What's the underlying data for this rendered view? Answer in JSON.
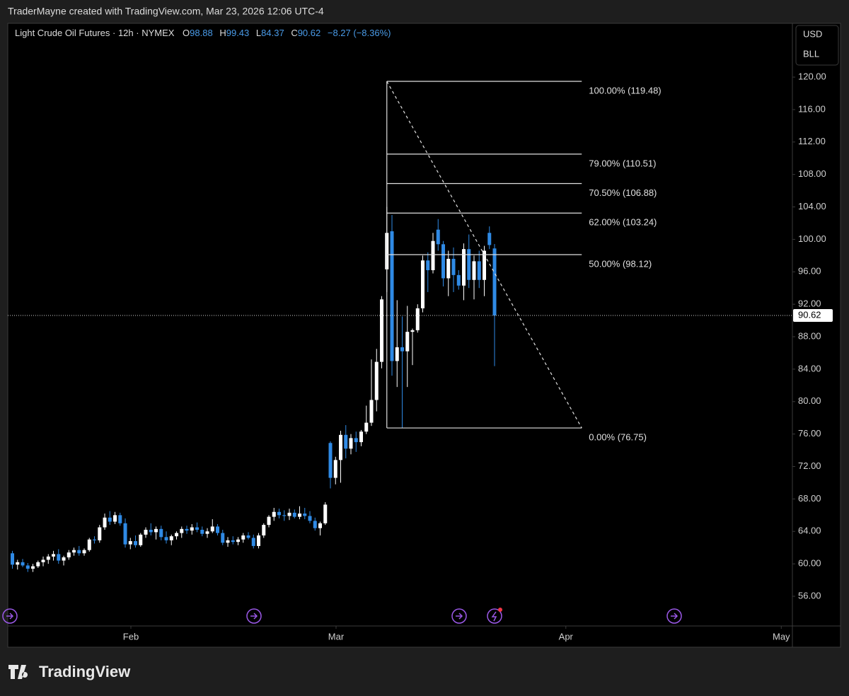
{
  "credit": "TraderMayne created with TradingView.com, Mar 23, 2026 12:06 UTC-4",
  "brand": "TradingView",
  "chart_data": {
    "type": "candlestick",
    "title": "Light Crude Oil Futures · 12h · NYMEX",
    "ohlc_labels": [
      "O",
      "H",
      "L",
      "C"
    ],
    "change": "−8.27 (−8.36%)",
    "currency": "USD",
    "unit": "BLL",
    "up_color": "#ffffff",
    "down_color": "#2f8ae5",
    "ylim": [
      52.34,
      126.63
    ],
    "yticks": [
      {
        "value": 120,
        "label": "120.00"
      },
      {
        "value": 116,
        "label": "116.00"
      },
      {
        "value": 112,
        "label": "112.00"
      },
      {
        "value": 108,
        "label": "108.00"
      },
      {
        "value": 104,
        "label": "104.00"
      },
      {
        "value": 100,
        "label": "100.00"
      },
      {
        "value": 96,
        "label": "96.00"
      },
      {
        "value": 92,
        "label": "92.00"
      },
      {
        "value": 88,
        "label": "88.00"
      },
      {
        "value": 84,
        "label": "84.00"
      },
      {
        "value": 80,
        "label": "80.00"
      },
      {
        "value": 76,
        "label": "76.00"
      },
      {
        "value": 72,
        "label": "72.00"
      },
      {
        "value": 68,
        "label": "68.00"
      },
      {
        "value": 64,
        "label": "64.00"
      },
      {
        "value": 60,
        "label": "60.00"
      },
      {
        "value": 56,
        "label": "56.00"
      }
    ],
    "xlim": [
      -0.9,
      152.07
    ],
    "xticks": [
      {
        "value": 23.1,
        "label": "Feb"
      },
      {
        "value": 63.1,
        "label": "Mar"
      },
      {
        "value": 107.9,
        "label": "Apr"
      },
      {
        "value": 149.9,
        "label": "May"
      }
    ],
    "ohlc": [
      [
        61.3,
        61.6,
        59.4,
        59.9
      ],
      [
        59.9,
        60.5,
        59.3,
        60.2
      ],
      [
        60.2,
        60.6,
        59.6,
        59.8
      ],
      [
        59.8,
        60.1,
        59.0,
        59.4
      ],
      [
        59.4,
        60.0,
        59.0,
        59.7
      ],
      [
        59.7,
        60.4,
        59.5,
        60.2
      ],
      [
        60.2,
        60.9,
        59.7,
        60.5
      ],
      [
        60.5,
        61.2,
        60.0,
        60.9
      ],
      [
        60.9,
        61.6,
        60.4,
        61.2
      ],
      [
        61.2,
        61.8,
        60.0,
        60.4
      ],
      [
        60.4,
        61.0,
        59.8,
        60.8
      ],
      [
        60.8,
        61.7,
        60.5,
        61.4
      ],
      [
        61.4,
        62.0,
        61.0,
        61.7
      ],
      [
        61.7,
        62.2,
        61.0,
        61.3
      ],
      [
        61.3,
        61.9,
        61.0,
        61.7
      ],
      [
        61.7,
        63.2,
        61.5,
        63.0
      ],
      [
        63.0,
        63.4,
        62.5,
        62.9
      ],
      [
        62.9,
        64.8,
        62.6,
        64.5
      ],
      [
        64.5,
        66.2,
        64.2,
        65.7
      ],
      [
        65.7,
        66.5,
        64.8,
        65.2
      ],
      [
        65.2,
        66.4,
        64.9,
        66.0
      ],
      [
        66.0,
        66.3,
        64.7,
        65.0
      ],
      [
        65.0,
        65.6,
        62.0,
        62.4
      ],
      [
        62.4,
        63.2,
        61.8,
        62.8
      ],
      [
        62.8,
        63.5,
        62.0,
        62.3
      ],
      [
        62.3,
        63.8,
        62.1,
        63.6
      ],
      [
        63.6,
        64.5,
        63.2,
        64.2
      ],
      [
        64.2,
        65.0,
        63.5,
        63.9
      ],
      [
        63.9,
        64.6,
        63.0,
        64.3
      ],
      [
        64.3,
        64.7,
        62.9,
        63.3
      ],
      [
        63.3,
        64.0,
        62.5,
        62.9
      ],
      [
        62.9,
        63.6,
        62.3,
        63.4
      ],
      [
        63.4,
        64.0,
        63.0,
        63.8
      ],
      [
        63.8,
        64.6,
        63.2,
        64.3
      ],
      [
        64.3,
        64.7,
        63.7,
        64.1
      ],
      [
        64.1,
        64.9,
        63.6,
        64.5
      ],
      [
        64.5,
        65.1,
        63.9,
        64.2
      ],
      [
        64.2,
        64.6,
        63.4,
        63.7
      ],
      [
        63.7,
        64.4,
        63.2,
        64.0
      ],
      [
        64.0,
        65.5,
        63.8,
        64.6
      ],
      [
        64.6,
        64.9,
        63.5,
        63.8
      ],
      [
        63.8,
        64.2,
        62.3,
        62.6
      ],
      [
        62.6,
        63.3,
        62.1,
        62.9
      ],
      [
        62.9,
        63.4,
        62.4,
        62.7
      ],
      [
        62.7,
        63.3,
        62.3,
        63.0
      ],
      [
        63.0,
        63.8,
        62.6,
        63.5
      ],
      [
        63.5,
        63.9,
        63.0,
        63.2
      ],
      [
        63.2,
        63.6,
        61.9,
        62.2
      ],
      [
        62.2,
        63.8,
        61.9,
        63.5
      ],
      [
        63.5,
        65.0,
        63.2,
        64.8
      ],
      [
        64.8,
        66.0,
        64.5,
        65.8
      ],
      [
        65.8,
        66.9,
        65.3,
        66.4
      ],
      [
        66.4,
        66.8,
        65.6,
        66.0
      ],
      [
        66.0,
        66.6,
        65.3,
        65.9
      ],
      [
        65.9,
        66.8,
        65.4,
        66.3
      ],
      [
        66.3,
        66.7,
        65.6,
        65.8
      ],
      [
        65.8,
        67.1,
        65.5,
        66.2
      ],
      [
        66.2,
        66.9,
        65.5,
        65.9
      ],
      [
        65.9,
        66.5,
        65.0,
        65.3
      ],
      [
        65.3,
        65.7,
        64.1,
        64.4
      ],
      [
        64.4,
        65.2,
        63.5,
        65.0
      ],
      [
        65.0,
        67.6,
        64.8,
        67.3
      ],
      [
        74.9,
        75.1,
        69.3,
        70.6
      ],
      [
        70.6,
        73.2,
        69.8,
        72.8
      ],
      [
        72.8,
        76.4,
        70.0,
        75.9
      ],
      [
        75.9,
        77.1,
        73.0,
        74.2
      ],
      [
        74.2,
        76.0,
        73.5,
        75.5
      ],
      [
        75.5,
        76.3,
        73.8,
        75.0
      ],
      [
        75.0,
        76.5,
        74.5,
        76.3
      ],
      [
        76.3,
        79.5,
        76.0,
        77.4
      ],
      [
        77.4,
        85.2,
        77.0,
        80.2
      ],
      [
        80.2,
        86.5,
        78.8,
        84.9
      ],
      [
        84.9,
        93.0,
        84.1,
        92.6
      ],
      [
        96.3,
        104.0,
        93.5,
        100.8
      ],
      [
        101.0,
        103.0,
        83.2,
        85.0
      ],
      [
        85.0,
        92.5,
        81.8,
        86.7
      ],
      [
        86.7,
        90.5,
        76.75,
        86.2
      ],
      [
        86.2,
        91.8,
        81.8,
        88.6
      ],
      [
        88.6,
        89.0,
        84.5,
        88.8
      ],
      [
        88.8,
        92.0,
        88.5,
        91.5
      ],
      [
        91.5,
        98.0,
        91.0,
        97.4
      ],
      [
        97.4,
        98.4,
        93.5,
        96.2
      ],
      [
        96.2,
        100.8,
        95.8,
        99.8
      ],
      [
        101.2,
        102.5,
        98.6,
        99.4
      ],
      [
        99.4,
        99.8,
        94.2,
        95.2
      ],
      [
        95.2,
        98.6,
        93.0,
        97.6
      ],
      [
        97.6,
        99.0,
        93.5,
        95.6
      ],
      [
        95.6,
        96.2,
        93.8,
        94.3
      ],
      [
        94.3,
        99.5,
        92.5,
        98.8
      ],
      [
        98.8,
        100.6,
        94.0,
        95.0
      ],
      [
        95.0,
        98.0,
        92.6,
        97.3
      ],
      [
        97.3,
        98.6,
        94.0,
        95.0
      ],
      [
        95.0,
        99.2,
        93.0,
        98.6
      ],
      [
        100.8,
        101.6,
        98.8,
        99.3
      ],
      [
        98.88,
        99.43,
        84.37,
        90.62
      ]
    ],
    "fib": {
      "start_x": 73,
      "end_x": 111,
      "levels": [
        {
          "value": 119.48,
          "label": "100.00% (119.48)"
        },
        {
          "value": 110.51,
          "label": "79.00% (110.51)"
        },
        {
          "value": 106.88,
          "label": "70.50% (106.88)"
        },
        {
          "value": 103.24,
          "label": "62.00% (103.24)"
        },
        {
          "value": 98.12,
          "label": "50.00% (98.12)"
        },
        {
          "value": 76.75,
          "label": "0.00% (76.75)"
        }
      ]
    }
  }
}
